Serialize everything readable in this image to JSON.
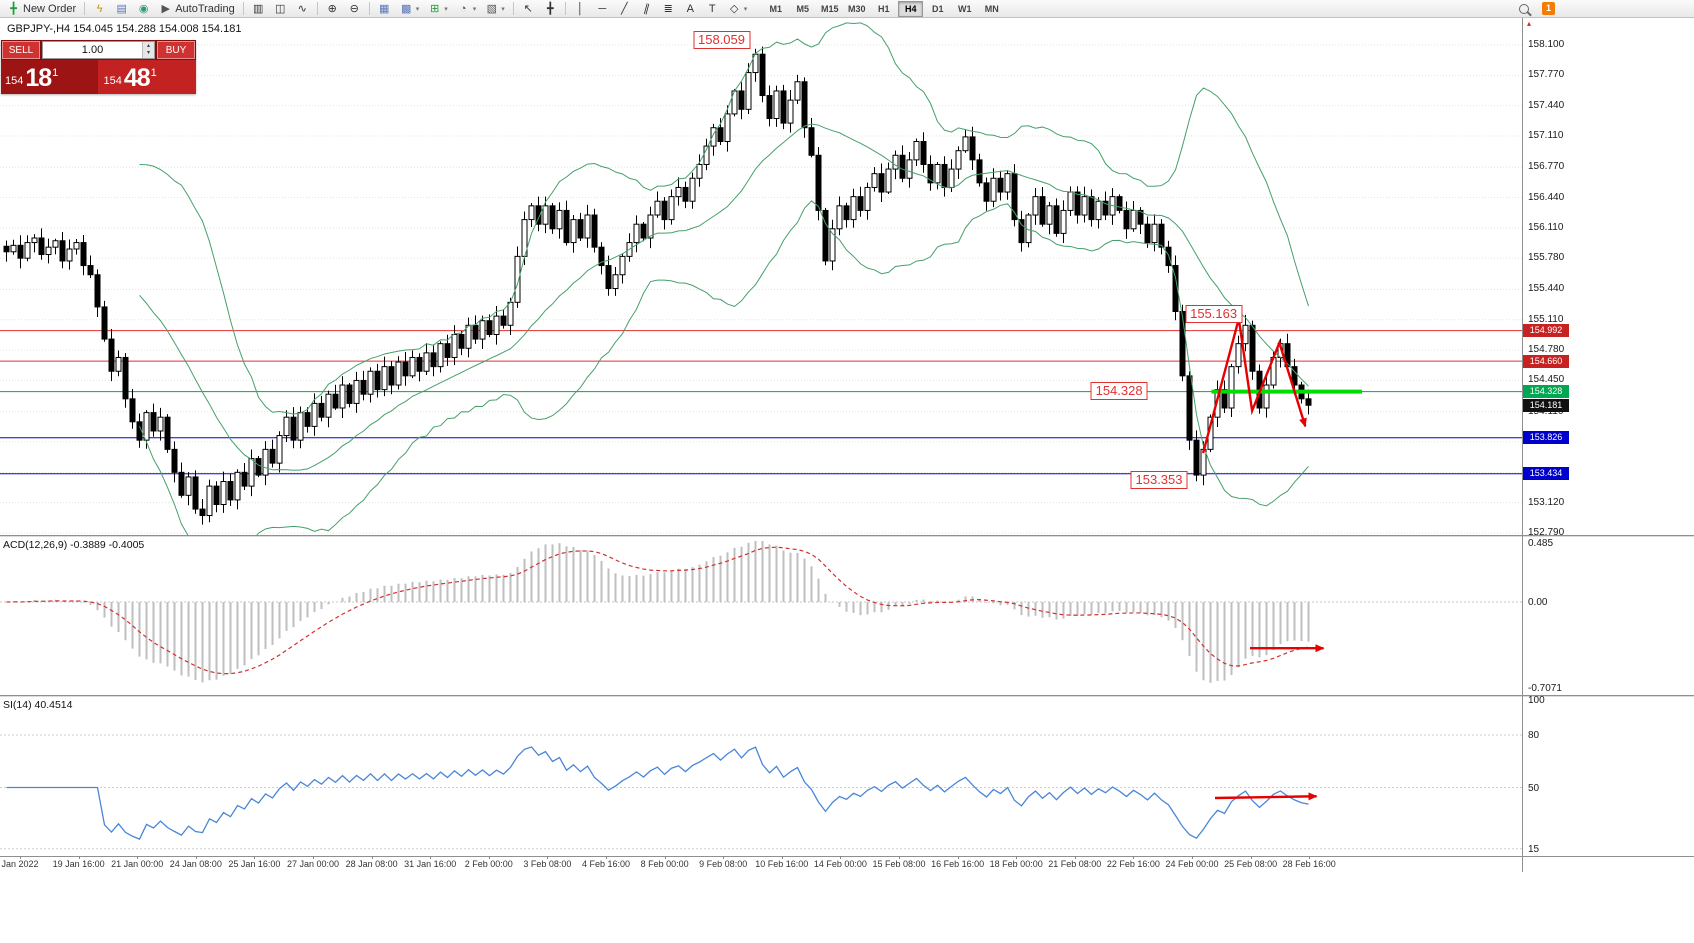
{
  "toolbar": {
    "new_order_label": "New Order",
    "autotrading_label": "AutoTrading",
    "timeframes": [
      "M1",
      "M5",
      "M15",
      "M30",
      "H1",
      "H4",
      "D1",
      "W1",
      "MN"
    ],
    "active_timeframe": "H4",
    "notification_count": "1",
    "text_tool_label": "A",
    "label_tool_label": "T"
  },
  "chart": {
    "header": "GBPJPY-,H4  154.045 154.288 154.008 154.181"
  },
  "trade_panel": {
    "sell_label": "SELL",
    "buy_label": "BUY",
    "volume": "1.00",
    "bid_prefix": "154",
    "bid_main": "18",
    "bid_sup": "1",
    "ask_prefix": "154",
    "ask_main": "48",
    "ask_sup": "1"
  },
  "chart_data": {
    "type": "candlestick",
    "symbol": "GBPJPY-",
    "timeframe": "H4",
    "ohlc_last": {
      "open": 154.045,
      "high": 154.288,
      "low": 154.008,
      "close": 154.181
    },
    "ylim": [
      152.79,
      158.3
    ],
    "closes": [
      155.85,
      155.92,
      155.78,
      155.95,
      156.0,
      155.82,
      155.9,
      155.97,
      155.75,
      155.88,
      155.95,
      155.7,
      155.6,
      155.25,
      154.9,
      154.55,
      154.7,
      154.25,
      154.0,
      153.8,
      154.1,
      153.9,
      154.05,
      153.7,
      153.45,
      153.2,
      153.4,
      153.05,
      152.98,
      153.3,
      153.1,
      153.35,
      153.15,
      153.45,
      153.3,
      153.6,
      153.42,
      153.7,
      153.55,
      153.85,
      154.05,
      153.8,
      154.1,
      153.95,
      154.2,
      154.05,
      154.3,
      154.15,
      154.4,
      154.2,
      154.45,
      154.3,
      154.55,
      154.35,
      154.6,
      154.4,
      154.65,
      154.5,
      154.7,
      154.55,
      154.75,
      154.6,
      154.85,
      154.7,
      154.95,
      154.8,
      155.05,
      154.9,
      155.1,
      154.95,
      155.15,
      155.05,
      155.3,
      155.8,
      156.2,
      156.35,
      156.15,
      156.35,
      156.1,
      156.3,
      155.95,
      156.2,
      156.0,
      156.25,
      155.9,
      155.7,
      155.45,
      155.6,
      155.8,
      155.95,
      156.15,
      156.0,
      156.25,
      156.4,
      156.2,
      156.45,
      156.55,
      156.4,
      156.65,
      156.8,
      157.0,
      157.2,
      157.05,
      157.35,
      157.6,
      157.4,
      157.8,
      158.0,
      157.55,
      157.3,
      157.6,
      157.25,
      157.5,
      157.7,
      157.2,
      156.9,
      156.3,
      155.75,
      156.1,
      156.35,
      156.2,
      156.45,
      156.3,
      156.55,
      156.7,
      156.5,
      156.75,
      156.9,
      156.65,
      156.85,
      157.05,
      156.8,
      156.6,
      156.8,
      156.55,
      156.75,
      156.95,
      157.1,
      156.85,
      156.6,
      156.4,
      156.65,
      156.5,
      156.7,
      156.2,
      155.95,
      156.25,
      156.45,
      156.15,
      156.35,
      156.05,
      156.3,
      156.5,
      156.25,
      156.45,
      156.2,
      156.4,
      156.25,
      156.45,
      156.3,
      156.1,
      156.3,
      156.15,
      155.95,
      156.15,
      155.9,
      155.7,
      155.2,
      154.5,
      153.8,
      153.42,
      153.7,
      154.05,
      154.35,
      154.15,
      154.6,
      154.85,
      155.05,
      154.55,
      154.15,
      154.4,
      154.7,
      154.85,
      154.6,
      154.4,
      154.25,
      154.18
    ],
    "key_points": {
      "peak_index": 107,
      "peak_high": 158.059,
      "low_index": 170,
      "low_low": 153.353,
      "bounce_index": 177,
      "bounce_high": 155.163
    },
    "price_ticks": [
      "158.100",
      "157.770",
      "157.440",
      "157.110",
      "156.770",
      "156.440",
      "156.110",
      "155.780",
      "155.440",
      "155.110",
      "154.780",
      "154.450",
      "154.110",
      "153.780",
      "153.450",
      "153.120",
      "152.790"
    ],
    "time_labels": [
      "Jan 2022",
      "19 Jan 16:00",
      "21 Jan 00:00",
      "24 Jan 08:00",
      "25 Jan 16:00",
      "27 Jan 00:00",
      "28 Jan 08:00",
      "31 Jan 16:00",
      "2 Feb 00:00",
      "3 Feb 08:00",
      "4 Feb 16:00",
      "8 Feb 00:00",
      "9 Feb 08:00",
      "10 Feb 16:00",
      "14 Feb 00:00",
      "15 Feb 08:00",
      "16 Feb 16:00",
      "18 Feb 00:00",
      "21 Feb 08:00",
      "22 Feb 16:00",
      "24 Feb 00:00",
      "25 Feb 08:00",
      "28 Feb 16:00"
    ],
    "levels": [
      {
        "price": 154.992,
        "color": "#e03131",
        "tag": "154.992",
        "tag_bg": "#c62222"
      },
      {
        "price": 154.66,
        "color": "#e03131",
        "tag": "154.660",
        "tag_bg": "#c62222"
      },
      {
        "price": 154.328,
        "color": "#00a651",
        "tag": "154.328",
        "tag_bg": "#00a651"
      },
      {
        "price": 153.826,
        "color": "#0000dd",
        "tag": "153.826",
        "tag_bg": "#0000cc"
      },
      {
        "price": 153.434,
        "color": "#0000dd",
        "tag": "153.434",
        "tag_bg": "#0000cc"
      }
    ],
    "last_price_tag": {
      "text": "154.181",
      "price": 154.181,
      "bg": "#111111"
    },
    "highlight_segment": {
      "price": 154.328,
      "from_index": 172.5,
      "to_index": 194,
      "color": "#00dd00",
      "width": 4
    },
    "callouts": [
      {
        "text": "158.059",
        "index": 102.5,
        "price": 158.15
      },
      {
        "text": "155.163",
        "index": 172.8,
        "price": 155.17
      },
      {
        "text": "154.328",
        "index": 159.3,
        "price": 154.335
      },
      {
        "text": "153.353",
        "index": 165.0,
        "price": 153.367
      }
    ],
    "arrows": {
      "price": [
        [
          171.3,
          153.66
        ],
        [
          176.4,
          155.12
        ],
        [
          178.3,
          154.12
        ],
        [
          182.2,
          154.86
        ],
        [
          185.9,
          153.95
        ]
      ],
      "macd": [
        [
          178,
          -0.38
        ],
        [
          188.5,
          -0.38
        ]
      ],
      "rsi": [
        [
          173,
          44
        ],
        [
          187.5,
          45
        ]
      ]
    },
    "indicators": {
      "bollinger": {
        "period": 20,
        "deviation": 2,
        "color": "#46a06a"
      },
      "macd": {
        "label": "ACD(12,26,9) -0.3889 -0.4005",
        "ticks": [
          "0.485",
          "0.00",
          "-0.7071"
        ],
        "tick_values": [
          0.485,
          0,
          -0.7071
        ],
        "hist_color": "#bfbfbf",
        "signal_color": "#d03030"
      },
      "rsi": {
        "label": "SI(14) 40.4514",
        "ticks": [
          "100",
          "80",
          "50",
          "15"
        ],
        "tick_values": [
          100,
          80,
          50,
          15
        ],
        "color": "#4a86d8"
      }
    },
    "colors": {
      "bull": "#ffffff",
      "bear": "#000000",
      "grid": "#e3e3e3",
      "arrow": "#e60000"
    }
  }
}
